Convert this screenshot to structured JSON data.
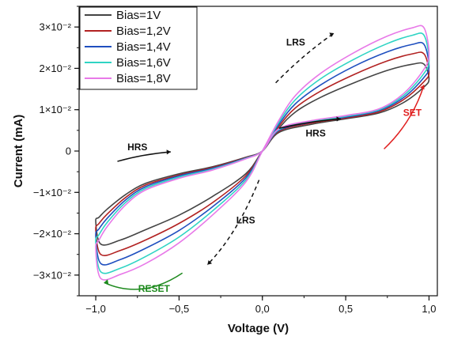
{
  "chart_data": {
    "type": "line",
    "title": "",
    "xlabel": "Voltage (V)",
    "ylabel": "Current (mA)",
    "xlim": [
      -1.1,
      1.05
    ],
    "ylim": [
      -0.035,
      0.035
    ],
    "x_ticks": [
      -1.0,
      -0.5,
      0.0,
      0.5,
      1.0
    ],
    "x_tick_labels": [
      "−1,0",
      "−0,5",
      "0,0",
      "0,5",
      "1,0"
    ],
    "y_ticks": [
      -0.03,
      -0.02,
      -0.01,
      0,
      0.01,
      0.02,
      0.03
    ],
    "y_tick_labels": [
      "−3×10⁻²",
      "−2×10⁻²",
      "−1×10⁻²",
      "0",
      "1×10⁻²",
      "2×10⁻²",
      "3×10⁻²"
    ],
    "legend_position": "top-left",
    "grid": false,
    "series": [
      {
        "name": "Bias=1V",
        "color": "#444444",
        "x": [
          0,
          0.1,
          0.3,
          0.5,
          0.7,
          0.85,
          0.97,
          1.0,
          0.97,
          0.9,
          0.75,
          0.55,
          0.35,
          0.2,
          0.1,
          0,
          -0.1,
          -0.3,
          -0.5,
          -0.7,
          -0.85,
          -0.97,
          -1.0,
          -0.98,
          -0.93,
          -0.82,
          -0.7,
          -0.5,
          -0.3,
          -0.1,
          0
        ],
        "y": [
          0,
          0.0045,
          0.0065,
          0.0078,
          0.0092,
          0.0118,
          0.0155,
          0.0175,
          0.021,
          0.021,
          0.0195,
          0.0165,
          0.013,
          0.0095,
          0.0055,
          0,
          -0.0055,
          -0.011,
          -0.0155,
          -0.019,
          -0.0215,
          -0.0225,
          -0.017,
          -0.016,
          -0.014,
          -0.0105,
          -0.0078,
          -0.0055,
          -0.0038,
          -0.0015,
          0
        ]
      },
      {
        "name": "Bias=1,2V",
        "color": "#b22222",
        "x": [
          0,
          0.1,
          0.3,
          0.5,
          0.7,
          0.85,
          0.97,
          1.0,
          0.97,
          0.9,
          0.75,
          0.55,
          0.35,
          0.2,
          0.1,
          0,
          -0.1,
          -0.3,
          -0.5,
          -0.7,
          -0.85,
          -0.97,
          -1.0,
          -0.98,
          -0.93,
          -0.82,
          -0.7,
          -0.5,
          -0.3,
          -0.1,
          0
        ],
        "y": [
          0,
          0.0048,
          0.0068,
          0.008,
          0.0095,
          0.0125,
          0.0168,
          0.019,
          0.0235,
          0.0235,
          0.0218,
          0.0185,
          0.0145,
          0.0105,
          0.006,
          0,
          -0.006,
          -0.0125,
          -0.0175,
          -0.0215,
          -0.024,
          -0.025,
          -0.019,
          -0.0175,
          -0.0152,
          -0.0112,
          -0.0082,
          -0.0058,
          -0.004,
          -0.0016,
          0
        ]
      },
      {
        "name": "Bias=1,4V",
        "color": "#1f4fbf",
        "x": [
          0,
          0.1,
          0.3,
          0.5,
          0.7,
          0.85,
          0.97,
          1.0,
          0.97,
          0.9,
          0.75,
          0.55,
          0.35,
          0.2,
          0.1,
          0,
          -0.1,
          -0.3,
          -0.5,
          -0.7,
          -0.85,
          -0.97,
          -1.0,
          -0.98,
          -0.93,
          -0.82,
          -0.7,
          -0.5,
          -0.3,
          -0.1,
          0
        ],
        "y": [
          0,
          0.005,
          0.007,
          0.0082,
          0.0098,
          0.013,
          0.0178,
          0.0205,
          0.0258,
          0.0258,
          0.024,
          0.0205,
          0.016,
          0.0115,
          0.0065,
          0,
          -0.0065,
          -0.0135,
          -0.0192,
          -0.0235,
          -0.0262,
          -0.0272,
          -0.0205,
          -0.0188,
          -0.0162,
          -0.0118,
          -0.0086,
          -0.006,
          -0.0042,
          -0.0017,
          0
        ]
      },
      {
        "name": "Bias=1,6V",
        "color": "#2fd4c4",
        "x": [
          0,
          0.1,
          0.3,
          0.5,
          0.7,
          0.85,
          0.97,
          1.0,
          0.97,
          0.9,
          0.75,
          0.55,
          0.35,
          0.2,
          0.1,
          0,
          -0.1,
          -0.3,
          -0.5,
          -0.7,
          -0.85,
          -0.97,
          -1.0,
          -0.98,
          -0.93,
          -0.82,
          -0.7,
          -0.5,
          -0.3,
          -0.1,
          0
        ],
        "y": [
          0,
          0.0052,
          0.0072,
          0.0084,
          0.01,
          0.0135,
          0.0188,
          0.022,
          0.028,
          0.028,
          0.026,
          0.0222,
          0.0175,
          0.0125,
          0.007,
          0,
          -0.007,
          -0.0145,
          -0.0208,
          -0.0255,
          -0.0283,
          -0.0292,
          -0.022,
          -0.0202,
          -0.0172,
          -0.0124,
          -0.009,
          -0.0063,
          -0.0044,
          -0.0018,
          0
        ]
      },
      {
        "name": "Bias=1,8V",
        "color": "#e879e8",
        "x": [
          0,
          0.1,
          0.3,
          0.5,
          0.7,
          0.85,
          0.97,
          1.0,
          0.97,
          0.9,
          0.75,
          0.55,
          0.35,
          0.2,
          0.1,
          0,
          -0.1,
          -0.3,
          -0.5,
          -0.7,
          -0.85,
          -0.97,
          -1.0,
          -0.98,
          -0.93,
          -0.82,
          -0.7,
          -0.5,
          -0.3,
          -0.1,
          0
        ],
        "y": [
          0,
          0.0054,
          0.0074,
          0.0086,
          0.0102,
          0.014,
          0.0198,
          0.0235,
          0.0298,
          0.0298,
          0.0278,
          0.0238,
          0.0188,
          0.0135,
          0.0075,
          0,
          -0.0075,
          -0.0155,
          -0.0222,
          -0.0272,
          -0.0298,
          -0.0308,
          -0.0235,
          -0.0215,
          -0.0182,
          -0.013,
          -0.0094,
          -0.0066,
          -0.0046,
          -0.0019,
          0
        ]
      }
    ],
    "annotations": [
      {
        "text": "LRS",
        "x": 0.2,
        "y": 0.0255,
        "color": "#111111"
      },
      {
        "text": "HRS",
        "x": -0.75,
        "y": 0.0002,
        "color": "#111111"
      },
      {
        "text": "HRS",
        "x": 0.32,
        "y": 0.0035,
        "color": "#111111"
      },
      {
        "text": "SET",
        "x": 0.9,
        "y": 0.0085,
        "color": "#e02020"
      },
      {
        "text": "LRS",
        "x": -0.1,
        "y": -0.0175,
        "color": "#111111"
      },
      {
        "text": "RESET",
        "x": -0.65,
        "y": -0.034,
        "color": "#1e8a1e"
      }
    ]
  }
}
